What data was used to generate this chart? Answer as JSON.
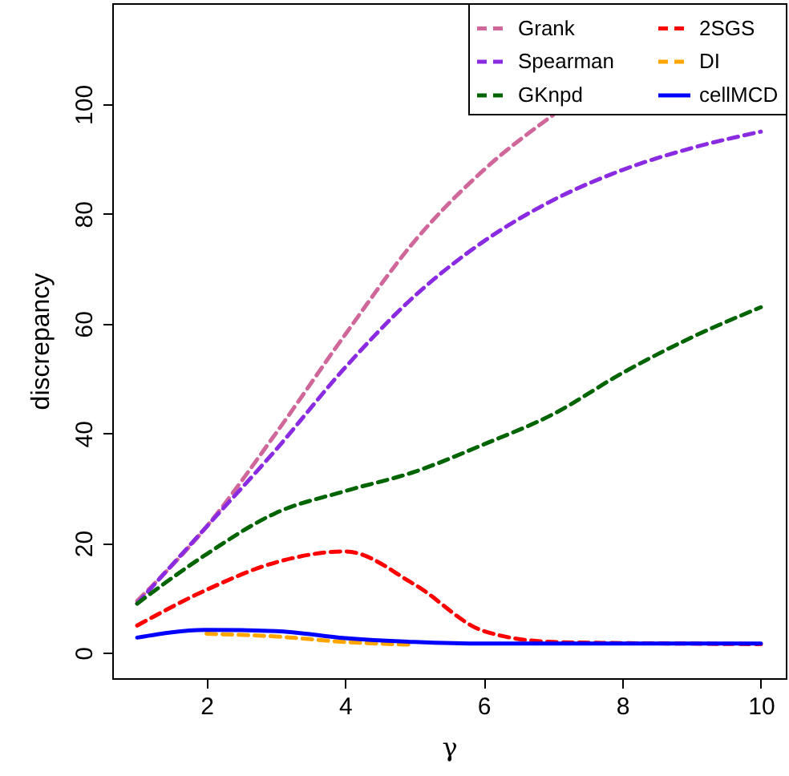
{
  "chart_data": {
    "type": "line",
    "xlabel": "γ",
    "ylabel": "discrepancy",
    "x": [
      1,
      2,
      3,
      4,
      5,
      6,
      7,
      8,
      9,
      10
    ],
    "xlim": [
      0.64,
      10.36
    ],
    "ylim": [
      -4.6,
      118.4
    ],
    "xticks": [
      2,
      4,
      6,
      8,
      10
    ],
    "yticks": [
      0,
      20,
      40,
      60,
      80,
      100
    ],
    "grid": false,
    "legend": "top right",
    "marker": "none",
    "series": [
      {
        "name": "Grank",
        "color": "#d0679a",
        "line_style": "dashed",
        "values": [
          9.5,
          23,
          40,
          58,
          75,
          88,
          98,
          null,
          null,
          null
        ]
      },
      {
        "name": "Spearman",
        "color": "#8a2be2",
        "line_style": "dashed",
        "values": [
          9,
          23,
          37,
          52,
          65,
          75,
          82.5,
          88,
          92,
          95
        ]
      },
      {
        "name": "GKnpd",
        "color": "#006400",
        "line_style": "dashed",
        "values": [
          9,
          18,
          25.5,
          29.5,
          33,
          38,
          43.5,
          51,
          57.5,
          63
        ]
      },
      {
        "name": "2SGS",
        "color": "#ff0000",
        "line_style": "dashed",
        "values": [
          5,
          11.5,
          16.5,
          18.5,
          12.5,
          4,
          2,
          1.8,
          1.7,
          1.6
        ]
      },
      {
        "name": "DI",
        "color": "#ffa500",
        "line_style": "dashed",
        "values": [
          null,
          3.5,
          3,
          2,
          1.5,
          null,
          null,
          null,
          null,
          null
        ]
      },
      {
        "name": "cellMCD",
        "color": "#0000ff",
        "line_style": "solid",
        "values": [
          2.8,
          4.2,
          4,
          2.7,
          2,
          1.7,
          1.7,
          1.7,
          1.7,
          1.7
        ]
      }
    ]
  }
}
